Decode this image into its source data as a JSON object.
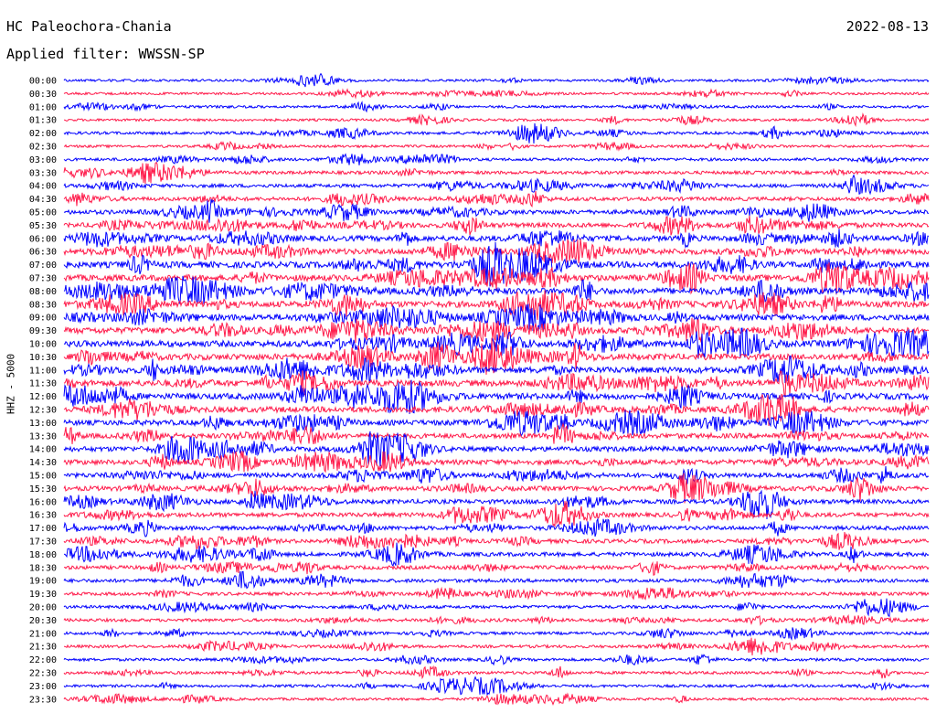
{
  "header": {
    "station": "HC Paleochora-Chania",
    "date": "2022-08-13",
    "filter": "Applied filter: WWSSN-SP"
  },
  "chart_data": {
    "type": "line",
    "title": "HC Paleochora-Chania",
    "subtitle": "Applied filter: WWSSN-SP",
    "date": "2022-08-13",
    "ylabel": "HHZ - 5000",
    "xlabel": "",
    "grid": false,
    "legend": "none",
    "colors": [
      "#0000ff",
      "#ff1a4a"
    ],
    "trace_rows": [
      "00:00",
      "00:30",
      "01:00",
      "01:30",
      "02:00",
      "02:30",
      "03:00",
      "03:30",
      "04:00",
      "04:30",
      "05:00",
      "05:30",
      "06:00",
      "06:30",
      "07:00",
      "07:30",
      "08:00",
      "08:30",
      "09:00",
      "09:30",
      "10:00",
      "10:30",
      "11:00",
      "11:30",
      "12:00",
      "12:30",
      "13:00",
      "13:30",
      "14:00",
      "14:30",
      "15:00",
      "15:30",
      "16:00",
      "16:30",
      "17:00",
      "17:30",
      "18:00",
      "18:30",
      "19:00",
      "19:30",
      "20:00",
      "20:30",
      "21:00",
      "21:30",
      "22:00",
      "22:30",
      "23:00",
      "23:30"
    ],
    "row_activity": [
      0.3,
      0.3,
      0.35,
      0.3,
      0.45,
      0.35,
      0.45,
      0.55,
      0.6,
      0.65,
      0.75,
      0.8,
      0.9,
      0.95,
      1.0,
      1.0,
      1.0,
      1.0,
      1.0,
      1.0,
      1.0,
      1.0,
      1.0,
      1.0,
      1.0,
      0.95,
      0.9,
      0.85,
      0.85,
      0.85,
      0.8,
      0.8,
      0.75,
      0.75,
      0.7,
      0.7,
      0.7,
      0.65,
      0.6,
      0.55,
      0.5,
      0.5,
      0.45,
      0.45,
      0.45,
      0.45,
      0.4,
      0.35
    ]
  }
}
